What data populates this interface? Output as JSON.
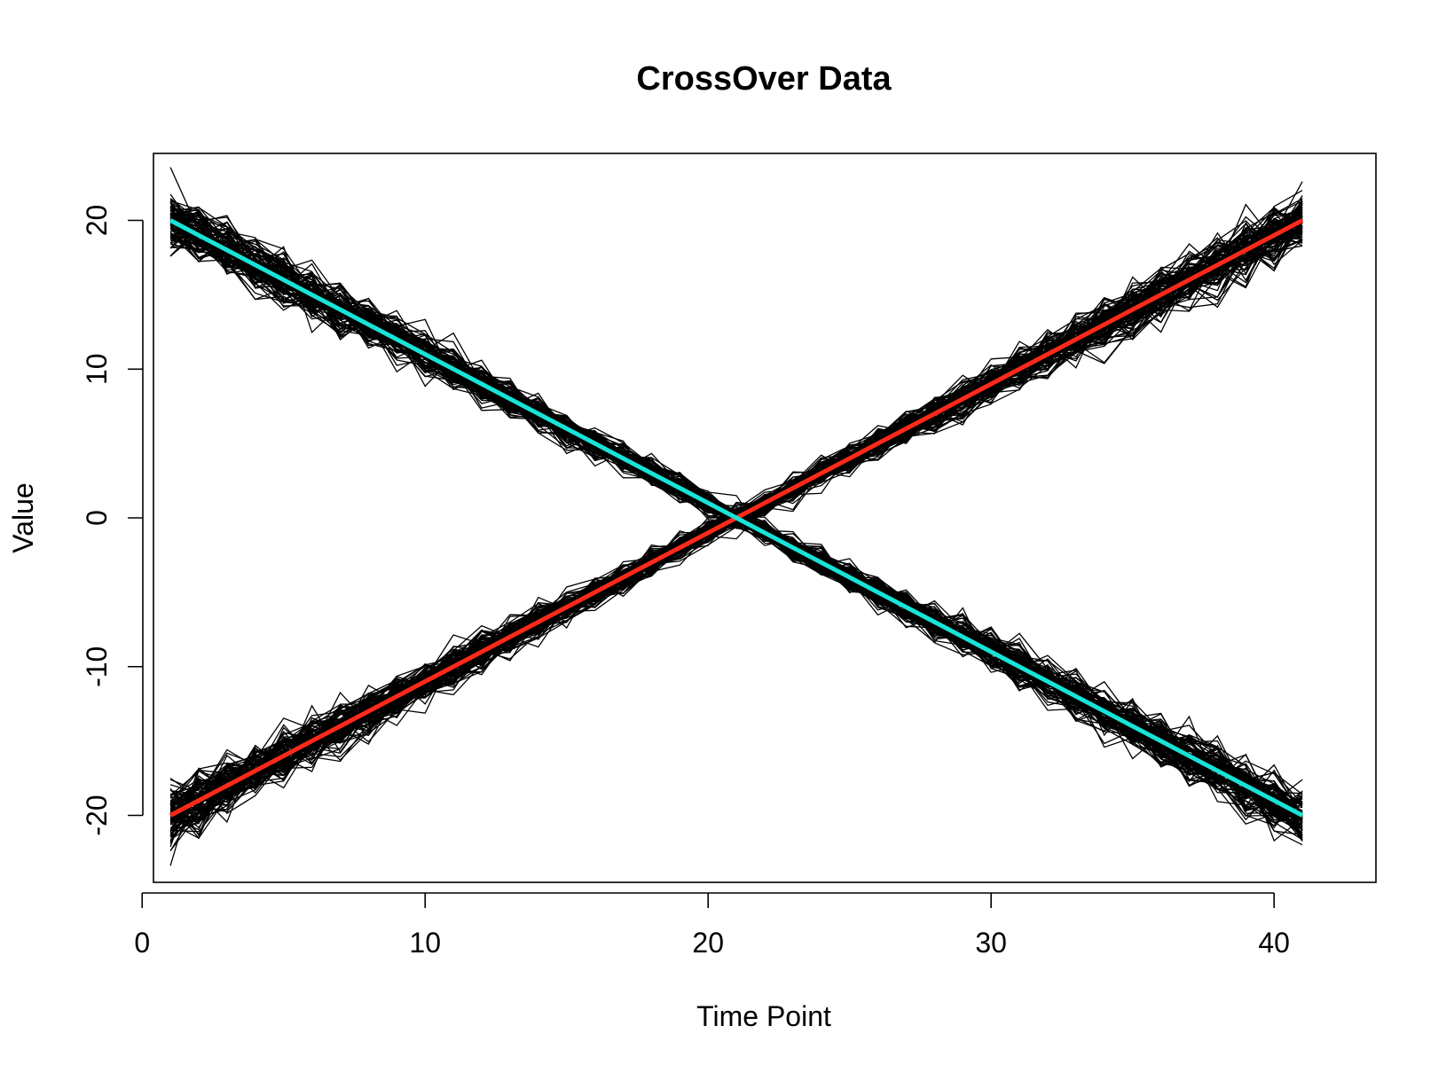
{
  "chart_data": {
    "type": "line",
    "title": "CrossOver Data",
    "xlabel": "Time Point",
    "ylabel": "Value",
    "xlim": [
      0.4,
      43.6
    ],
    "ylim": [
      -24.5,
      24.5
    ],
    "x_ticks": [
      0,
      10,
      20,
      30,
      40
    ],
    "x_tick_labels": [
      "0",
      "10",
      "20",
      "30",
      "40"
    ],
    "y_ticks": [
      -20,
      -10,
      0,
      10,
      20
    ],
    "y_tick_labels": [
      "-20",
      "-10",
      "0",
      "10",
      "20"
    ],
    "grid": false,
    "x": [
      1,
      2,
      3,
      4,
      5,
      6,
      7,
      8,
      9,
      10,
      11,
      12,
      13,
      14,
      15,
      16,
      17,
      18,
      19,
      20,
      21,
      22,
      23,
      24,
      25,
      26,
      27,
      28,
      29,
      30,
      31,
      32,
      33,
      34,
      35,
      36,
      37,
      38,
      39,
      40,
      41
    ],
    "series": [
      {
        "role": "mean-increasing",
        "color": "#ff2a1a",
        "values": [
          -20,
          -19,
          -18,
          -17,
          -16,
          -15,
          -14,
          -13,
          -12,
          -11,
          -10,
          -9,
          -8,
          -7,
          -6,
          -5,
          -4,
          -3,
          -2,
          -1,
          0,
          1,
          2,
          3,
          4,
          5,
          6,
          7,
          8,
          9,
          10,
          11,
          12,
          13,
          14,
          15,
          16,
          17,
          18,
          19,
          20
        ]
      },
      {
        "role": "mean-decreasing",
        "color": "#19e3d6",
        "values": [
          20,
          19,
          18,
          17,
          16,
          15,
          14,
          13,
          12,
          11,
          10,
          9,
          8,
          7,
          6,
          5,
          4,
          3,
          2,
          1,
          0,
          -1,
          -2,
          -3,
          -4,
          -5,
          -6,
          -7,
          -8,
          -9,
          -10,
          -11,
          -12,
          -13,
          -14,
          -15,
          -16,
          -17,
          -18,
          -19,
          -20
        ]
      }
    ],
    "sample_curves": {
      "color": "#000000",
      "count_per_group": 100,
      "groups": [
        "increasing",
        "decreasing"
      ],
      "noise_sd_approx": 1.0
    }
  }
}
